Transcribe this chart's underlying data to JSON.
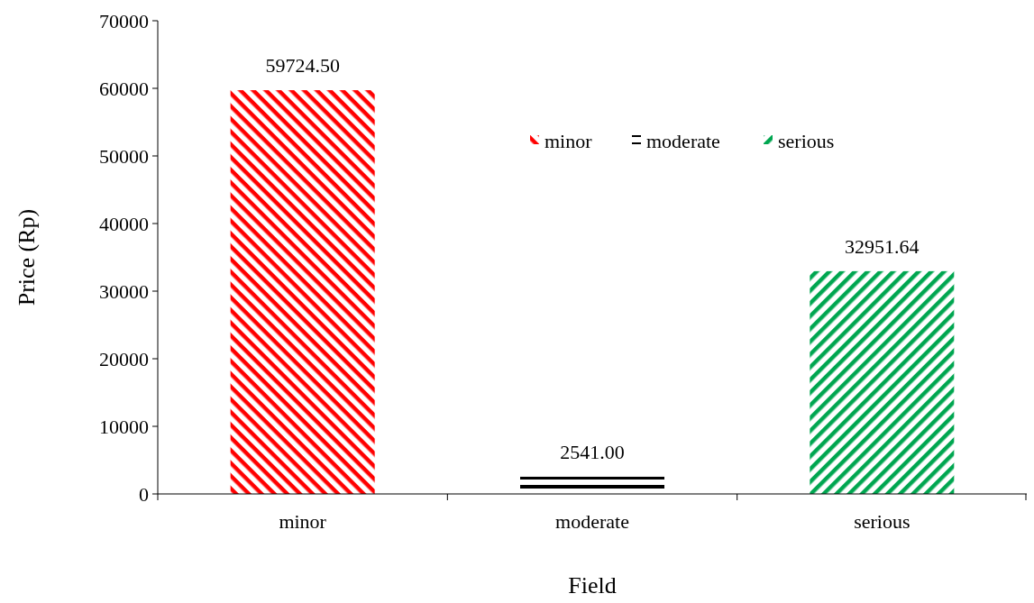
{
  "chart_data": {
    "type": "bar",
    "xlabel": "Field",
    "ylabel": "Price (Rp)",
    "categories": [
      "minor",
      "moderate",
      "serious"
    ],
    "series": [
      {
        "name": "minor",
        "color": "#ff0000",
        "values": [
          59724.5,
          null,
          null
        ]
      },
      {
        "name": "moderate",
        "color": "#000000",
        "values": [
          null,
          2541,
          null
        ]
      },
      {
        "name": "serious",
        "color": "#00a650",
        "values": [
          null,
          null,
          32951.64
        ]
      }
    ],
    "value_labels": [
      "59724.50",
      "2541.00",
      "32951.64"
    ],
    "ylim": [
      0,
      70000
    ],
    "yticks": [
      0,
      10000,
      20000,
      30000,
      40000,
      50000,
      60000,
      70000
    ],
    "legend": "top right",
    "grid": false
  }
}
